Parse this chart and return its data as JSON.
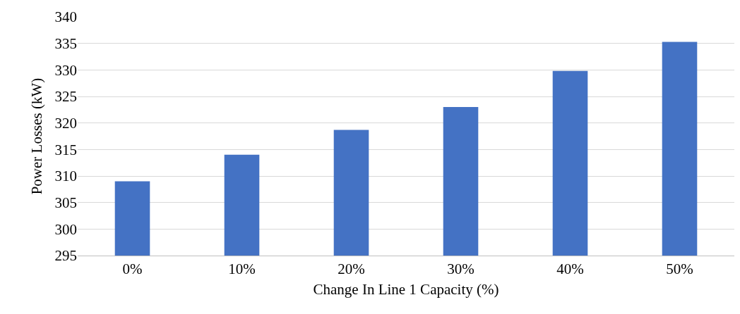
{
  "chart_data": {
    "type": "bar",
    "xlabel": "Change In Line 1 Capacity (%)",
    "ylabel": "Power Losses (kW)",
    "categories": [
      "0%",
      "10%",
      "20%",
      "30%",
      "40%",
      "50%"
    ],
    "values": [
      309,
      314,
      318.7,
      323,
      329.8,
      335.3
    ],
    "color": "#4472c4",
    "ylim": [
      295,
      340
    ],
    "yticks": [
      295,
      300,
      305,
      310,
      315,
      320,
      325,
      330,
      335,
      340
    ],
    "grid": "y"
  }
}
